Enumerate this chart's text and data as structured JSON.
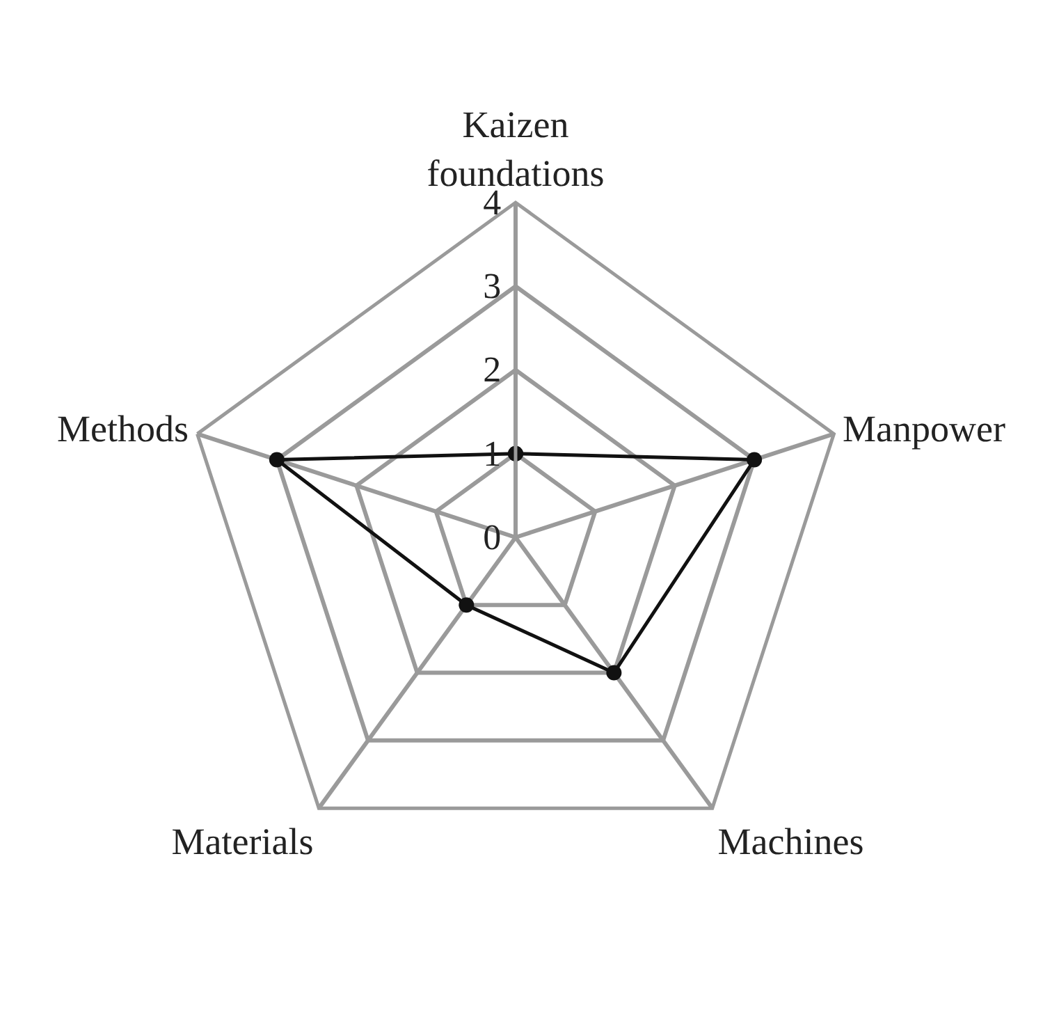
{
  "chart_data": {
    "type": "radar",
    "categories": [
      "Kaizen foundations",
      "Manpower",
      "Machines",
      "Materials",
      "Methods"
    ],
    "series": [
      {
        "color": "#111111",
        "values": [
          1,
          3,
          2,
          1,
          3
        ]
      }
    ],
    "ylim": [
      0,
      4
    ],
    "yticks": [
      0,
      1,
      2,
      3,
      4
    ],
    "grid": true,
    "marker": "circle",
    "line_style": "solid"
  }
}
